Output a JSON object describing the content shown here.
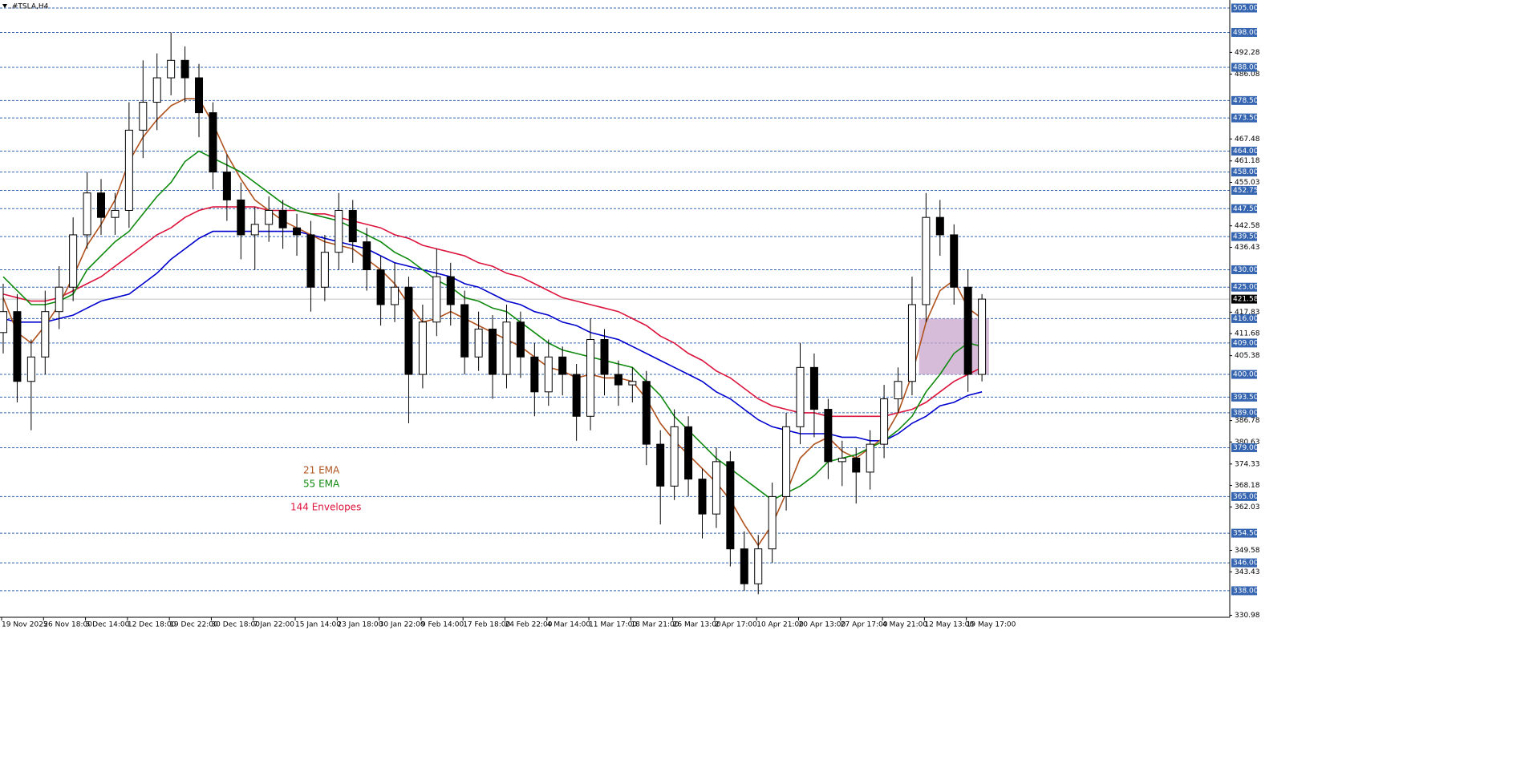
{
  "chart_data": {
    "type": "candlestick",
    "title": ".#TSLA,H4",
    "categories": [
      "19 Nov 2025",
      null,
      null,
      "26 Nov 18:00",
      null,
      null,
      "5 Dec 14:00",
      null,
      null,
      "12 Dec 18:00",
      null,
      null,
      "19 Dec 22:00",
      null,
      null,
      "30 Dec 18:00",
      null,
      null,
      "7 Jan 22:00",
      null,
      null,
      "15 Jan 14:00",
      null,
      null,
      "23 Jan 18:00",
      null,
      null,
      "30 Jan 22:00",
      null,
      null,
      "9 Feb 14:00",
      null,
      null,
      "17 Feb 18:00",
      null,
      null,
      "24 Feb 22:00",
      null,
      null,
      "4 Mar 14:00",
      null,
      null,
      "11 Mar 17:00",
      null,
      null,
      "18 Mar 21:00",
      null,
      null,
      "26 Mar 13:00",
      null,
      null,
      "2 Apr 17:00",
      null,
      null,
      "10 Apr 21:00",
      null,
      null,
      "20 Apr 13:00",
      null,
      null,
      "27 Apr 17:00",
      null,
      null,
      "4 May 21:00",
      null,
      null,
      "12 May 13:00",
      null,
      null,
      "19 May 17:00",
      null
    ],
    "open": [
      412,
      418,
      398,
      405,
      418,
      425,
      440,
      452,
      445,
      447,
      470,
      478,
      485,
      490,
      485,
      475,
      458,
      450,
      440,
      443,
      447,
      442,
      440,
      425,
      435,
      447,
      438,
      430,
      420,
      425,
      400,
      415,
      428,
      420,
      405,
      413,
      400,
      415,
      405,
      395,
      405,
      400,
      388,
      410,
      400,
      397,
      398,
      380,
      368,
      385,
      370,
      360,
      375,
      350,
      340,
      350,
      365,
      385,
      402,
      390,
      375,
      376,
      372,
      380,
      393,
      398,
      420,
      445,
      440,
      425,
      400
    ],
    "high": [
      426,
      423,
      410,
      424,
      431,
      445,
      458,
      456,
      452,
      478,
      490,
      492,
      498,
      494,
      489,
      478,
      463,
      455,
      448,
      451,
      450,
      446,
      444,
      440,
      452,
      450,
      442,
      434,
      432,
      428,
      420,
      436,
      432,
      424,
      418,
      417,
      420,
      418,
      409,
      410,
      408,
      403,
      416,
      413,
      404,
      402,
      401,
      384,
      390,
      388,
      373,
      379,
      378,
      355,
      354,
      369,
      389,
      409,
      406,
      393,
      381,
      379,
      384,
      397,
      402,
      428,
      452,
      450,
      443,
      430,
      423
    ],
    "low": [
      406,
      392,
      384,
      400,
      413,
      421,
      436,
      440,
      440,
      442,
      462,
      470,
      480,
      478,
      468,
      453,
      444,
      433,
      430,
      438,
      436,
      434,
      418,
      421,
      430,
      432,
      424,
      414,
      415,
      386,
      396,
      411,
      414,
      400,
      401,
      393,
      396,
      399,
      388,
      391,
      394,
      381,
      384,
      394,
      391,
      392,
      374,
      357,
      364,
      365,
      353,
      356,
      345,
      338,
      337,
      346,
      361,
      380,
      382,
      370,
      368,
      363,
      367,
      376,
      389,
      394,
      415,
      434,
      420,
      395,
      398
    ],
    "close": [
      418,
      398,
      405,
      418,
      425,
      440,
      452,
      445,
      447,
      470,
      478,
      485,
      490,
      485,
      475,
      458,
      450,
      440,
      443,
      447,
      442,
      440,
      425,
      435,
      447,
      438,
      430,
      420,
      425,
      400,
      415,
      428,
      420,
      405,
      413,
      400,
      415,
      405,
      395,
      405,
      400,
      388,
      410,
      400,
      397,
      398,
      380,
      368,
      385,
      370,
      360,
      375,
      350,
      340,
      350,
      365,
      385,
      402,
      390,
      375,
      376,
      372,
      380,
      393,
      398,
      420,
      445,
      440,
      425,
      400,
      421.58
    ],
    "lines": [
      {
        "name": "21 EMA",
        "color": "#b0521e",
        "values": [
          422,
          412,
          409,
          414,
          420,
          428,
          437,
          443,
          450,
          461,
          468,
          473,
          477,
          479,
          479,
          472,
          463,
          456,
          450,
          447,
          444,
          442,
          440,
          438,
          437,
          436,
          433,
          430,
          426,
          420,
          415,
          416,
          418,
          416,
          414,
          412,
          410,
          408,
          405,
          402,
          401,
          399,
          400,
          399,
          399,
          398,
          393,
          386,
          381,
          377,
          373,
          369,
          364,
          357,
          351,
          357,
          366,
          376,
          380,
          382,
          378,
          376,
          379,
          382,
          389,
          400,
          415,
          424,
          427,
          419,
          416
        ]
      },
      {
        "name": "55 EMA",
        "color": "#0f8a0f",
        "values": [
          428,
          424,
          420,
          420,
          421,
          423,
          430,
          434,
          438,
          441,
          446,
          451,
          455,
          461,
          464,
          462,
          460,
          458,
          455,
          452,
          449,
          447,
          446,
          445,
          444,
          442,
          440,
          438,
          435,
          433,
          430,
          427,
          425,
          422,
          421,
          419,
          418,
          415,
          412,
          409,
          407,
          406,
          405,
          404,
          403,
          402,
          398,
          394,
          388,
          384,
          380,
          376,
          373,
          370,
          367,
          364,
          366,
          368,
          371,
          375,
          376,
          377,
          379,
          381,
          384,
          388,
          395,
          400,
          406,
          409,
          408
        ]
      }
    ],
    "envelopes": {
      "name": "144 Envelopes",
      "color": "#dc143c",
      "upper": {
        "color": "#dc143c",
        "values": [
          423,
          422,
          421,
          421,
          422,
          424,
          426,
          428,
          431,
          434,
          437,
          440,
          442,
          445,
          447,
          448,
          448,
          448,
          448,
          447,
          447,
          447,
          446,
          446,
          445,
          444,
          443,
          442,
          440,
          439,
          437,
          436,
          435,
          434,
          432,
          431,
          429,
          428,
          426,
          424,
          422,
          421,
          420,
          419,
          418,
          416,
          414,
          411,
          409,
          406,
          404,
          401,
          399,
          396,
          393,
          391,
          390,
          389,
          389,
          388,
          388,
          388,
          388,
          388,
          389,
          390,
          392,
          395,
          398,
          400,
          402
        ]
      },
      "lower": {
        "color": "#0000cd",
        "values": [
          416,
          415,
          415,
          415,
          416,
          417,
          419,
          421,
          422,
          423,
          426,
          429,
          433,
          436,
          439,
          441,
          441,
          441,
          441,
          441,
          441,
          441,
          440,
          439,
          438,
          437,
          436,
          434,
          432,
          431,
          430,
          429,
          428,
          426,
          425,
          423,
          421,
          420,
          418,
          417,
          415,
          414,
          412,
          411,
          410,
          408,
          406,
          404,
          402,
          400,
          398,
          395,
          393,
          390,
          387,
          385,
          384,
          383,
          383,
          383,
          382,
          382,
          381,
          381,
          383,
          386,
          388,
          391,
          392,
          394,
          395
        ]
      }
    },
    "zone": {
      "low": 400,
      "high": 416,
      "color": "#c9a6cc"
    },
    "levels": [
      {
        "value": 505,
        "label": "505.00"
      },
      {
        "value": 498,
        "label": "498.00"
      },
      {
        "value": 488,
        "label": "488.00"
      },
      {
        "value": 478.5,
        "label": "478.50"
      },
      {
        "value": 473.5,
        "label": "473.50"
      },
      {
        "value": 464,
        "label": "464.00"
      },
      {
        "value": 458,
        "label": "458.00"
      },
      {
        "value": 452.75,
        "label": "452.75"
      },
      {
        "value": 447.5,
        "label": "447.50"
      },
      {
        "value": 439.5,
        "label": "439.50"
      },
      {
        "value": 430,
        "label": "430.00"
      },
      {
        "value": 425,
        "label": "425.00"
      },
      {
        "value": 416,
        "label": "416.00"
      },
      {
        "value": 409,
        "label": "409.00"
      },
      {
        "value": 400,
        "label": "400.00"
      },
      {
        "value": 393.5,
        "label": "393.50"
      },
      {
        "value": 389,
        "label": "389.00"
      },
      {
        "value": 379,
        "label": "379.00"
      },
      {
        "value": 365,
        "label": "365.00"
      },
      {
        "value": 354.5,
        "label": "354.50"
      },
      {
        "value": 346,
        "label": "346.00"
      },
      {
        "value": 338,
        "label": "338.00"
      }
    ],
    "level_color": "#3565b0",
    "last_price": 421.58,
    "ylim": [
      330.4,
      507.3
    ],
    "yticks": [
      492.28,
      486.08,
      467.48,
      461.18,
      455.03,
      442.58,
      436.43,
      417.83,
      411.68,
      405.38,
      386.78,
      380.63,
      374.33,
      368.18,
      362.03,
      349.58,
      343.43,
      330.98
    ]
  }
}
